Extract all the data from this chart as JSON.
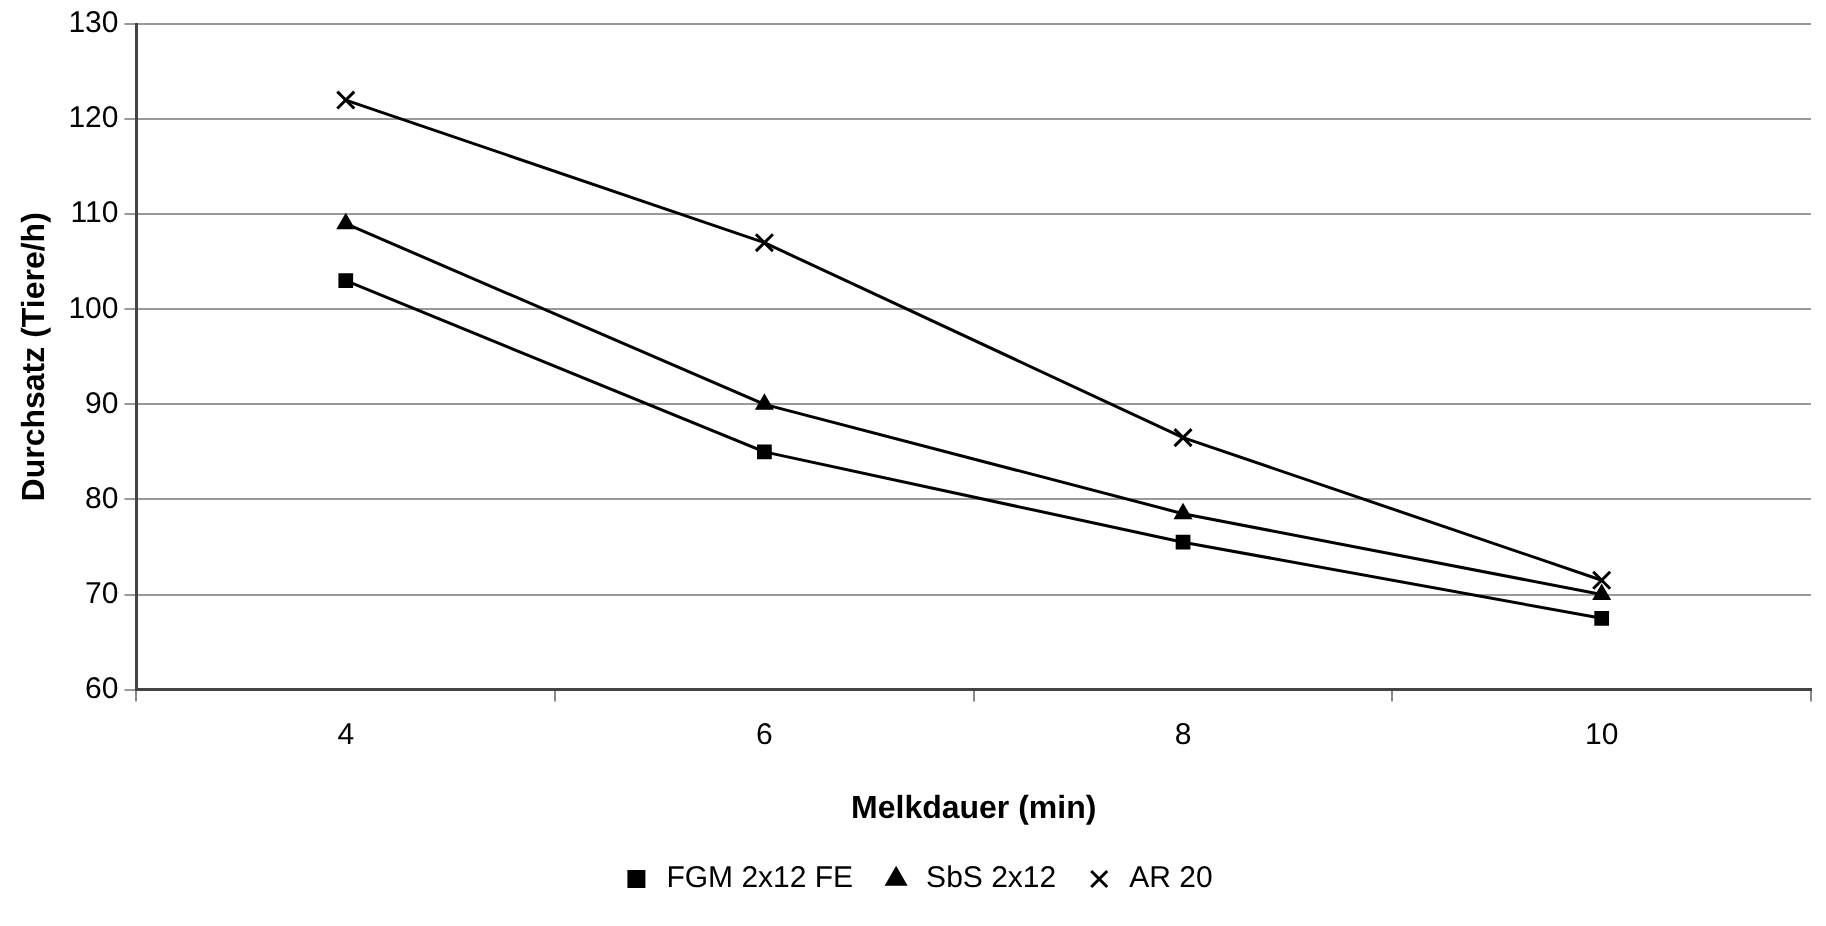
{
  "chart_data": {
    "type": "line",
    "xlabel": "Melkdauer (min)",
    "ylabel": "Durchsatz (Tiere/h)",
    "categories": [
      "4",
      "6",
      "8",
      "10"
    ],
    "series": [
      {
        "name": "FGM 2x12 FE",
        "color": "#000000",
        "marker": "square",
        "values": [
          103,
          85,
          75.5,
          67.5
        ]
      },
      {
        "name": "SbS 2x12",
        "color": "#000000",
        "marker": "triangle",
        "values": [
          109,
          90,
          78.5,
          70
        ]
      },
      {
        "name": "AR 20",
        "color": "#000000",
        "marker": "cross",
        "values": [
          122,
          107,
          86.5,
          71.5
        ]
      }
    ],
    "ylim": [
      60,
      130
    ],
    "yticks": [
      60,
      70,
      80,
      90,
      100,
      110,
      120,
      130
    ],
    "grid": "y",
    "legend": "bottom",
    "line_style": "solid"
  }
}
